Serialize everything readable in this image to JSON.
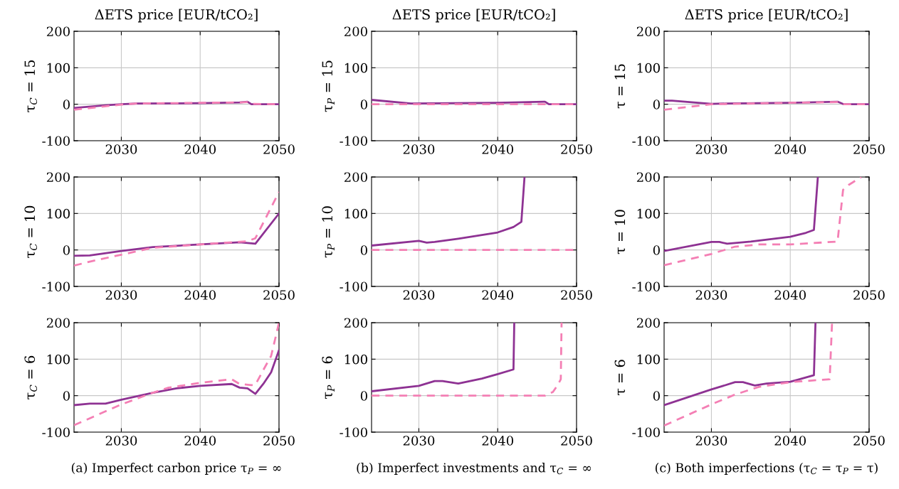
{
  "chart_data": [
    {
      "type": "line",
      "title": "ΔETS price [EUR/tCO₂]",
      "ylabel": "τ$_{C}$ = 15",
      "xlim": [
        2024,
        2050
      ],
      "ylim": [
        -100,
        200
      ],
      "xticks": [
        2030,
        2040,
        2050
      ],
      "yticks": [
        -100,
        0,
        100,
        200
      ],
      "grid": true,
      "series": [
        {
          "color": "#8e3293",
          "line_style": "solid",
          "x": [
            2024,
            2028,
            2030,
            2032,
            2040,
            2045,
            2046,
            2046.5,
            2050
          ],
          "values": [
            -10,
            -3,
            0,
            2,
            3,
            5,
            7,
            0,
            0
          ]
        },
        {
          "color": "#f47fb4",
          "line_style": "dashed",
          "x": [
            2024,
            2030,
            2032,
            2045,
            2046,
            2046.5,
            2050
          ],
          "values": [
            -15,
            -1,
            2,
            5,
            6,
            1,
            0
          ]
        }
      ]
    },
    {
      "type": "line",
      "title": "ΔETS price [EUR/tCO₂]",
      "ylabel": "τ$_{P}$ = 15",
      "xlim": [
        2024,
        2050
      ],
      "ylim": [
        -100,
        200
      ],
      "xticks": [
        2030,
        2040,
        2050
      ],
      "yticks": [
        -100,
        0,
        100,
        200
      ],
      "grid": true,
      "series": [
        {
          "color": "#8e3293",
          "line_style": "solid",
          "x": [
            2024,
            2029,
            2040,
            2046,
            2046.5,
            2050
          ],
          "values": [
            12,
            2,
            4,
            7,
            0,
            0
          ]
        },
        {
          "color": "#f47fb4",
          "line_style": "dashed",
          "x": [
            2024,
            2050
          ],
          "values": [
            0,
            0
          ]
        }
      ]
    },
    {
      "type": "line",
      "title": "ΔETS price [EUR/tCO₂]",
      "ylabel": "τ = 15",
      "xlim": [
        2024,
        2050
      ],
      "ylim": [
        -100,
        200
      ],
      "xticks": [
        2030,
        2040,
        2050
      ],
      "yticks": [
        -100,
        0,
        100,
        200
      ],
      "grid": true,
      "series": [
        {
          "color": "#8e3293",
          "line_style": "solid",
          "x": [
            2024,
            2025,
            2030,
            2032,
            2040,
            2046,
            2046.8,
            2050
          ],
          "values": [
            10,
            10,
            1,
            2,
            4,
            7,
            0,
            0
          ]
        },
        {
          "color": "#f47fb4",
          "line_style": "dashed",
          "x": [
            2024,
            2030,
            2040,
            2046,
            2046.6,
            2050
          ],
          "values": [
            -15,
            0,
            4,
            6,
            0,
            0
          ]
        }
      ]
    },
    {
      "type": "line",
      "ylabel": "τ$_{C}$ = 10",
      "xlim": [
        2024,
        2050
      ],
      "ylim": [
        -100,
        200
      ],
      "xticks": [
        2030,
        2040,
        2050
      ],
      "yticks": [
        -100,
        0,
        100,
        200
      ],
      "grid": true,
      "series": [
        {
          "color": "#8e3293",
          "line_style": "solid",
          "x": [
            2024,
            2026,
            2030,
            2034,
            2040,
            2045,
            2047,
            2050
          ],
          "values": [
            -16,
            -15,
            -3,
            8,
            15,
            21,
            17,
            100
          ]
        },
        {
          "color": "#f47fb4",
          "line_style": "dashed",
          "x": [
            2024,
            2026,
            2030,
            2034,
            2040,
            2046,
            2047,
            2050
          ],
          "values": [
            -43,
            -32,
            -13,
            6,
            15,
            24,
            32,
            159
          ]
        }
      ]
    },
    {
      "type": "line",
      "ylabel": "τ$_{P}$ = 10",
      "xlim": [
        2024,
        2050
      ],
      "ylim": [
        -100,
        200
      ],
      "xticks": [
        2030,
        2040,
        2050
      ],
      "yticks": [
        -100,
        0,
        100,
        200
      ],
      "grid": true,
      "series": [
        {
          "color": "#8e3293",
          "line_style": "solid",
          "x": [
            2024,
            2030,
            2031,
            2032,
            2035,
            2040,
            2042,
            2043,
            2043.4
          ],
          "values": [
            12,
            25,
            20,
            22,
            31,
            48,
            63,
            77,
            200
          ]
        },
        {
          "color": "#f47fb4",
          "line_style": "dashed",
          "x": [
            2024,
            2050
          ],
          "values": [
            0,
            0
          ]
        }
      ]
    },
    {
      "type": "line",
      "ylabel": "τ = 10",
      "xlim": [
        2024,
        2050
      ],
      "ylim": [
        -100,
        200
      ],
      "xticks": [
        2030,
        2040,
        2050
      ],
      "yticks": [
        -100,
        0,
        100,
        200
      ],
      "grid": true,
      "series": [
        {
          "color": "#8e3293",
          "line_style": "solid",
          "x": [
            2024,
            2030,
            2031,
            2032,
            2035,
            2040,
            2042,
            2043,
            2043.5
          ],
          "values": [
            -3,
            22,
            22,
            17,
            23,
            36,
            47,
            55,
            200
          ]
        },
        {
          "color": "#f47fb4",
          "line_style": "dashed",
          "x": [
            2024,
            2030,
            2033,
            2036,
            2040,
            2046,
            2046.7,
            2047.4,
            2049
          ],
          "values": [
            -42,
            -11,
            9,
            15,
            15,
            23,
            165,
            178,
            200
          ]
        }
      ]
    },
    {
      "type": "line",
      "ylabel": "τ$_{C}$ = 6",
      "xlim": [
        2024,
        2050
      ],
      "ylim": [
        -100,
        200
      ],
      "xticks": [
        2030,
        2040,
        2050
      ],
      "yticks": [
        -100,
        0,
        100,
        200
      ],
      "grid": true,
      "annotations": [
        "(a) Imperfect carbon price τ$_{P}$ = ∞"
      ],
      "series": [
        {
          "color": "#8e3293",
          "line_style": "solid",
          "x": [
            2024,
            2026,
            2028,
            2030,
            2034,
            2037,
            2040,
            2044,
            2045,
            2046,
            2047,
            2048,
            2049,
            2050
          ],
          "values": [
            -26,
            -22,
            -22,
            -11,
            8,
            20,
            27,
            32,
            22,
            20,
            5,
            32,
            64,
            125
          ]
        },
        {
          "color": "#f47fb4",
          "line_style": "dashed",
          "x": [
            2024,
            2030,
            2034,
            2036,
            2040,
            2044,
            2045,
            2046.5,
            2047,
            2048,
            2049,
            2050
          ],
          "values": [
            -81,
            -24,
            8,
            22,
            35,
            45,
            32,
            29,
            30,
            70,
            109,
            200
          ]
        }
      ]
    },
    {
      "type": "line",
      "ylabel": "τ$_{P}$ = 6",
      "xlim": [
        2024,
        2050
      ],
      "ylim": [
        -100,
        200
      ],
      "xticks": [
        2030,
        2040,
        2050
      ],
      "yticks": [
        -100,
        0,
        100,
        200
      ],
      "grid": true,
      "annotations": [
        "(b) Imperfect investments and τ$_{C}$ = ∞"
      ],
      "series": [
        {
          "color": "#8e3293",
          "line_style": "solid",
          "x": [
            2024,
            2030,
            2032,
            2033,
            2035,
            2038,
            2040,
            2042,
            2042.1
          ],
          "values": [
            12,
            27,
            40,
            40,
            33,
            47,
            59,
            72,
            200
          ]
        },
        {
          "color": "#f47fb4",
          "line_style": "dashed",
          "x": [
            2024,
            2046,
            2047,
            2047.6,
            2048,
            2048.1
          ],
          "values": [
            0,
            0,
            10,
            29,
            45,
            200
          ]
        }
      ]
    },
    {
      "type": "line",
      "ylabel": "τ = 6",
      "xlim": [
        2024,
        2050
      ],
      "ylim": [
        -100,
        200
      ],
      "xticks": [
        2030,
        2040,
        2050
      ],
      "yticks": [
        -100,
        0,
        100,
        200
      ],
      "grid": true,
      "annotations": [
        "(c) Both imperfections (τ$_{C}$ = τ$_{P}$ = τ)"
      ],
      "series": [
        {
          "color": "#8e3293",
          "line_style": "solid",
          "x": [
            2024,
            2030,
            2033,
            2034,
            2035.5,
            2037,
            2040,
            2041,
            2043,
            2043.2
          ],
          "values": [
            -26,
            17,
            37,
            37,
            28,
            33,
            38,
            44,
            56,
            200
          ]
        },
        {
          "color": "#f47fb4",
          "line_style": "dashed",
          "x": [
            2024,
            2030,
            2033,
            2036,
            2040,
            2045,
            2045.3
          ],
          "values": [
            -82,
            -24,
            3,
            24,
            37,
            45,
            200
          ]
        }
      ]
    }
  ]
}
